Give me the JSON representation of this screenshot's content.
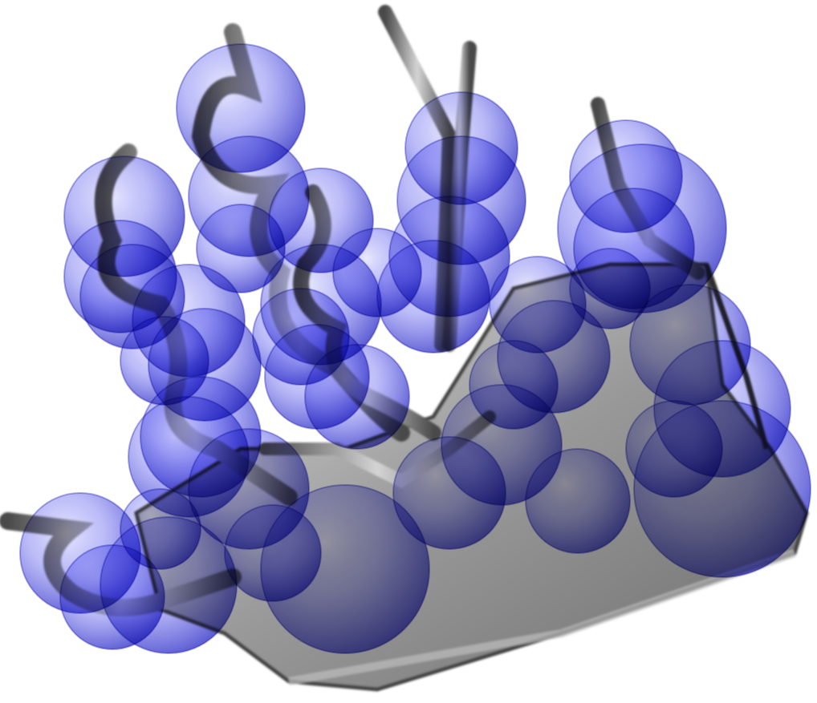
{
  "scene": {
    "background_color": "#ffffff",
    "surface_color": "#8a8a8a",
    "surface_dark_color": "#3a3a3a",
    "surface_light_color": "#d8d8d8",
    "sphere_color": "#2a2ad8",
    "sphere_edge_color": "#1010b0",
    "sphere_count": 42
  }
}
